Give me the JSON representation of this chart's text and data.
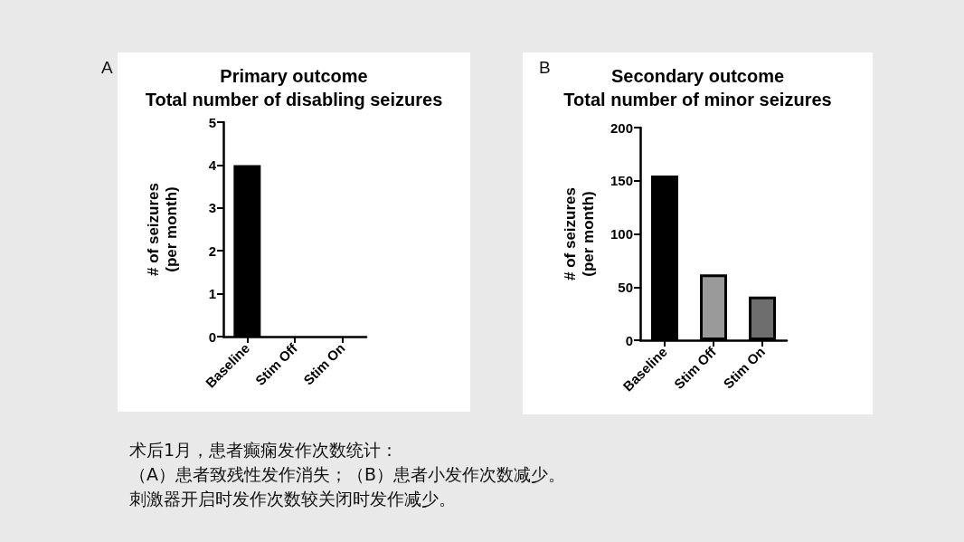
{
  "chart_data": [
    {
      "type": "bar",
      "title": "Primary outcome\nTotal number of disabling seizures",
      "ylabel": "# of seizures\n(per month)",
      "categories": [
        "Baseline",
        "Stim Off",
        "Stim On"
      ],
      "values": [
        4,
        0,
        0
      ],
      "colors": [
        "#000000",
        "#9a9a9a",
        "#6e6e6e"
      ],
      "ylim": [
        0,
        5
      ],
      "yticks": [
        0,
        1,
        2,
        3,
        4,
        5
      ],
      "grid": false,
      "annotations": [
        "A"
      ]
    },
    {
      "type": "bar",
      "title": "Secondary outcome\nTotal number of minor seizures",
      "ylabel": "# of seizures\n(per month)",
      "categories": [
        "Baseline",
        "Stim Off",
        "Stim On"
      ],
      "values": [
        155,
        62,
        41
      ],
      "colors": [
        "#000000",
        "#9a9a9a",
        "#6e6e6e"
      ],
      "ylim": [
        0,
        200
      ],
      "yticks": [
        0,
        50,
        100,
        150,
        200
      ],
      "grid": false,
      "annotations": [
        "B",
        "术后1月，患者癫痫发作次数统计：",
        "（A）患者致残性发作消失；（B）患者小发作次数减少。",
        "刺激器开启时发作次数较关闭时发作减少。"
      ]
    }
  ]
}
